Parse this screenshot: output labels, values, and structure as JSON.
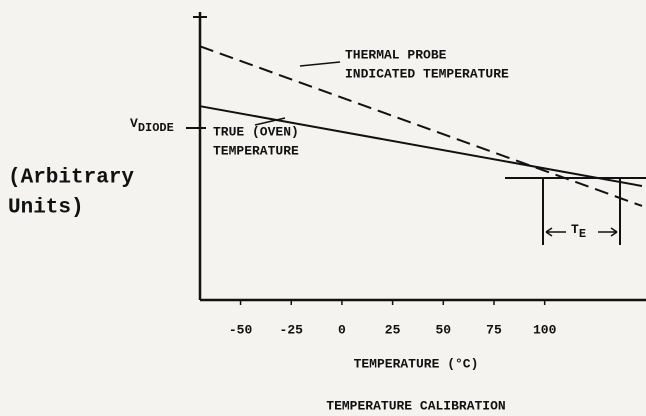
{
  "chart_data": {
    "type": "line",
    "title": "TEMPERATURE CALIBRATION",
    "x_label": "TEMPERATURE (°C)",
    "y_label": {
      "main": "V",
      "sub": "DIODE"
    },
    "y_units": [
      "(Arbitrary",
      "Units)"
    ],
    "x": [
      -70,
      148
    ],
    "xlim": [
      -70,
      148
    ],
    "xticks": [
      -50,
      -25,
      0,
      25,
      50,
      75,
      100
    ],
    "ylim": [
      0,
      10
    ],
    "series": [
      {
        "name": [
          "TRUE (OVEN)",
          "TEMPERATURE"
        ],
        "color": "#111111",
        "dash": false,
        "values": [
          6.8,
          4.0
        ]
      },
      {
        "name": [
          "THERMAL PROBE",
          "INDICATED TEMPERATURE"
        ],
        "color": "#111111",
        "dash": true,
        "values": [
          8.9,
          3.3
        ]
      }
    ],
    "annotation": {
      "main": "T",
      "sub": "E"
    }
  }
}
